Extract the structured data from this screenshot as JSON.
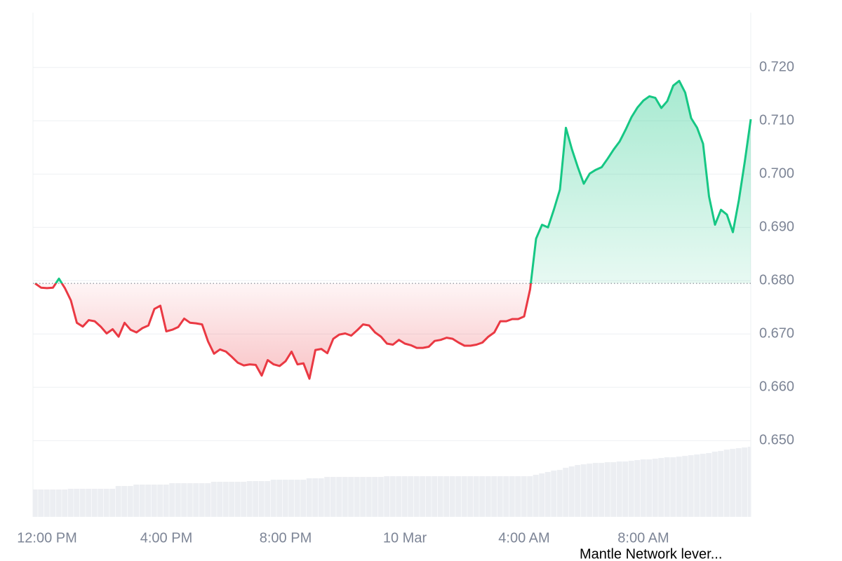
{
  "chart_data": {
    "type": "line",
    "caption": "Mantle Network lever...",
    "categories": [
      null,
      null,
      "12:00 PM",
      null,
      null,
      null,
      null,
      null,
      null,
      null,
      null,
      null,
      null,
      null,
      null,
      null,
      null,
      null,
      null,
      null,
      null,
      null,
      "4:00 PM",
      null,
      null,
      null,
      null,
      null,
      null,
      null,
      null,
      null,
      null,
      null,
      null,
      null,
      null,
      null,
      null,
      null,
      null,
      null,
      "8:00 PM",
      null,
      null,
      null,
      null,
      null,
      null,
      null,
      null,
      null,
      null,
      null,
      null,
      null,
      null,
      null,
      null,
      null,
      null,
      null,
      "10 Mar",
      null,
      null,
      null,
      null,
      null,
      null,
      null,
      null,
      null,
      null,
      null,
      null,
      null,
      null,
      null,
      null,
      null,
      null,
      null,
      "4:00 AM",
      null,
      null,
      null,
      null,
      null,
      null,
      null,
      null,
      null,
      null,
      null,
      null,
      null,
      null,
      null,
      null,
      null,
      null,
      null,
      "8:00 AM",
      null,
      null,
      null,
      null,
      null,
      null,
      null,
      null,
      null,
      null,
      null,
      null,
      null,
      null,
      null,
      null,
      null,
      null
    ],
    "values": [
      0.6795,
      0.6787,
      0.6786,
      0.6787,
      0.6804,
      0.6786,
      0.6763,
      0.6721,
      0.6714,
      0.6726,
      0.6724,
      0.6714,
      0.6701,
      0.6709,
      0.6695,
      0.6721,
      0.6708,
      0.6703,
      0.6711,
      0.6716,
      0.6747,
      0.6753,
      0.6705,
      0.6708,
      0.6713,
      0.6729,
      0.6721,
      0.672,
      0.6718,
      0.6686,
      0.6663,
      0.6671,
      0.6667,
      0.6657,
      0.6646,
      0.6641,
      0.6643,
      0.6642,
      0.6622,
      0.6651,
      0.6643,
      0.664,
      0.6649,
      0.6667,
      0.6643,
      0.6645,
      0.6616,
      0.667,
      0.6672,
      0.6664,
      0.6691,
      0.6699,
      0.6701,
      0.6697,
      0.6707,
      0.6718,
      0.6716,
      0.6703,
      0.6695,
      0.6682,
      0.668,
      0.6689,
      0.6682,
      0.6679,
      0.6674,
      0.6674,
      0.6676,
      0.6687,
      0.6689,
      0.6693,
      0.6691,
      0.6684,
      0.6678,
      0.6678,
      0.668,
      0.6684,
      0.6695,
      0.6703,
      0.6724,
      0.6724,
      0.6728,
      0.6728,
      0.6733,
      0.6784,
      0.6879,
      0.6905,
      0.69,
      0.6934,
      0.6971,
      0.7087,
      0.7047,
      0.7013,
      0.6982,
      0.7001,
      0.7008,
      0.7013,
      0.7029,
      0.7046,
      0.7061,
      0.7083,
      0.7107,
      0.7125,
      0.7138,
      0.7146,
      0.7143,
      0.7124,
      0.7137,
      0.7166,
      0.7175,
      0.7153,
      0.7105,
      0.7087,
      0.7057,
      0.6958,
      0.6905,
      0.6933,
      0.6924,
      0.6891,
      0.6951,
      0.7024,
      0.7103
    ],
    "baseline": 0.6795,
    "color_up": "#16c784",
    "color_down": "#ea3943",
    "ylim": [
      0.6357,
      0.7303
    ],
    "yticks": [
      {
        "value": 0.65,
        "label": "0.650"
      },
      {
        "value": 0.66,
        "label": "0.660"
      },
      {
        "value": 0.67,
        "label": "0.670"
      },
      {
        "value": 0.68,
        "label": "0.680"
      },
      {
        "value": 0.69,
        "label": "0.690"
      },
      {
        "value": 0.7,
        "label": "0.700"
      },
      {
        "value": 0.71,
        "label": "0.710"
      },
      {
        "value": 0.72,
        "label": "0.720"
      }
    ],
    "grid": true,
    "volume": {
      "color": "#eceef2",
      "ylim": [
        0,
        720
      ],
      "values": [
        39,
        39,
        39,
        39,
        39,
        39,
        40,
        40,
        40,
        40,
        40,
        40,
        40,
        40,
        44,
        44,
        44,
        46,
        46,
        46,
        46,
        46,
        46,
        48,
        48,
        48,
        48,
        48,
        48,
        48,
        50,
        50,
        50,
        50,
        50,
        50,
        51,
        51,
        51,
        51,
        53,
        53,
        53,
        53,
        53,
        53,
        55,
        55,
        55,
        57,
        57,
        57,
        57,
        57,
        57,
        57,
        57,
        57,
        57,
        58,
        58,
        58,
        58,
        58,
        58,
        58,
        58,
        58,
        58,
        58,
        58,
        58,
        58,
        58,
        58,
        58,
        58,
        58,
        58,
        58,
        58,
        58,
        58,
        58,
        60,
        62,
        64,
        66,
        67,
        70,
        72,
        74,
        75,
        76,
        77,
        77,
        78,
        78,
        79,
        79,
        80,
        81,
        82,
        82,
        83,
        84,
        85,
        85,
        86,
        87,
        88,
        89,
        90,
        91,
        93,
        94,
        96,
        97,
        98,
        99,
        100
      ]
    }
  }
}
